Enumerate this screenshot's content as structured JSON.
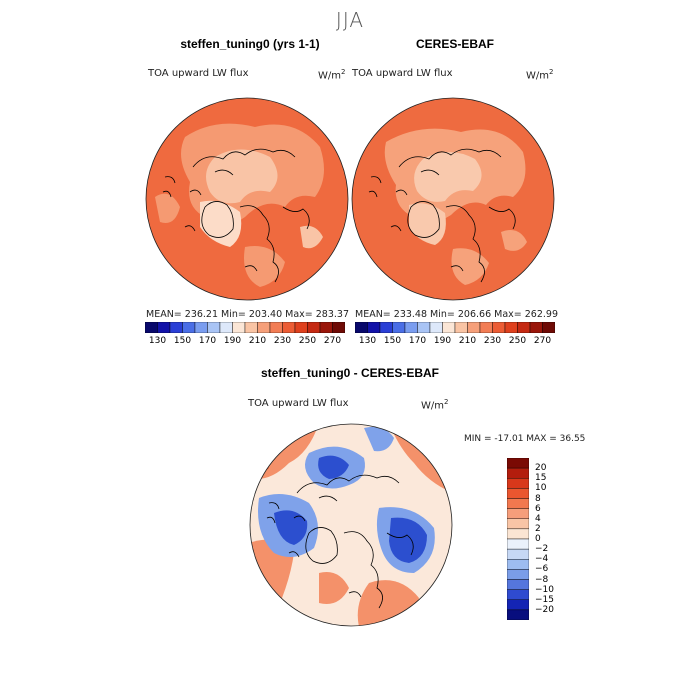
{
  "figure": {
    "season": "JJA"
  },
  "panels": [
    {
      "title": "steffen_tuning0 (yrs 1-1)",
      "variable": "TOA upward LW flux",
      "units": "W/m",
      "units_exp": "2",
      "stats": "MEAN= 236.21   Min= 203.40   Max= 283.37"
    },
    {
      "title": "CERES-EBAF",
      "variable": "TOA upward LW flux",
      "units": "W/m",
      "units_exp": "2",
      "stats": "MEAN= 233.48   Min= 206.66   Max= 262.99"
    }
  ],
  "colorbar_top": {
    "ticks": [
      "130",
      "150",
      "170",
      "190",
      "210",
      "230",
      "250",
      "270"
    ],
    "colors": [
      "#08086b",
      "#1212a8",
      "#2a3fd6",
      "#4a6ee6",
      "#7a9df0",
      "#a9c4f5",
      "#dde8fa",
      "#fbe6d6",
      "#f9c4a4",
      "#f6a07a",
      "#f27d55",
      "#ec5c34",
      "#df401d",
      "#c52912",
      "#9a160a",
      "#6e0a05"
    ]
  },
  "diff_panel": {
    "title": "steffen_tuning0 - CERES-EBAF",
    "variable": "TOA upward LW flux",
    "units": "W/m",
    "units_exp": "2",
    "stats": "MIN = -17.01  MAX =  36.55"
  },
  "colorbar_diff": {
    "labels": [
      "20",
      "15",
      "10",
      "8",
      "6",
      "4",
      "2",
      "0",
      "−2",
      "−4",
      "−6",
      "−8",
      "−10",
      "−15",
      "−20"
    ],
    "colors": [
      "#7a0a04",
      "#b31d0d",
      "#d8381b",
      "#ea562f",
      "#f2784f",
      "#f69e7b",
      "#f9c5a6",
      "#fbe5d3",
      "#eaf1fb",
      "#c6d8f5",
      "#9dbcf0",
      "#7a9de8",
      "#5576dd",
      "#2f4bd0",
      "#1424b4",
      "#080e7e"
    ]
  },
  "map_colors": {
    "sim_ocean": "#ef6a3f",
    "sim_land_mid": "#f59a72",
    "sim_land_light": "#f9c4a6",
    "sim_ice": "#fcdcc8",
    "obs_ocean": "#ee6b40",
    "obs_land_mid": "#f6a27b",
    "obs_land_light": "#f9c9ad",
    "diff_bg": "#fbe8da",
    "diff_pos": "#f4916a",
    "diff_pos_strong": "#e8532c",
    "diff_neg": "#7fa2ea",
    "diff_neg_strong": "#2c4fcf"
  }
}
